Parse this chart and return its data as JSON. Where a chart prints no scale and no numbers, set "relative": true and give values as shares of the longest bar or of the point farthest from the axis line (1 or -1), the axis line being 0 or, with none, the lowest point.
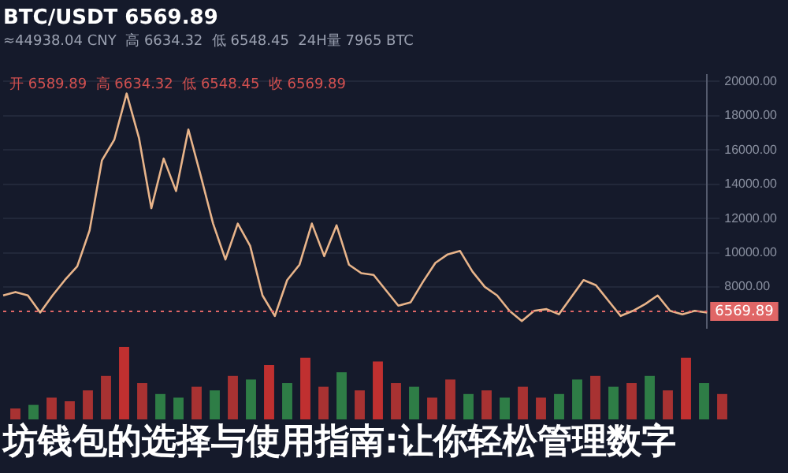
{
  "chart_data": [
    {
      "type": "line",
      "title": "BTC/USDT 6569.89",
      "subtitle": "≈44938.04 CNY  高 6634.32  低 6548.45  24H量 7965 BTC",
      "annotations": [
        "开 6589.89  高 6634.32  低 6548.45  收 6569.89"
      ],
      "categories": [
        null,
        null,
        null,
        null,
        null,
        null,
        null,
        null,
        null,
        null,
        null,
        null,
        null,
        null,
        null,
        null,
        null,
        null,
        null,
        null,
        null,
        null,
        null,
        null,
        null,
        null,
        null,
        null,
        null,
        null,
        null,
        null,
        null,
        null,
        null,
        null,
        null,
        null,
        null,
        null,
        null,
        null,
        null,
        null,
        null,
        null,
        null,
        null,
        null,
        null,
        null,
        null,
        null,
        null,
        null,
        null,
        null,
        null
      ],
      "series": [
        {
          "color": "#e8b48a",
          "values": [
            7500,
            7700,
            7500,
            6500,
            7500,
            8400,
            9200,
            11300,
            15400,
            16600,
            19300,
            16700,
            12600,
            15500,
            13600,
            17200,
            14500,
            11700,
            9600,
            11700,
            10400,
            7500,
            6300,
            8400,
            9300,
            11700,
            9800,
            11600,
            9300,
            8800,
            8700,
            7800,
            6900,
            7100,
            8300,
            9400,
            9900,
            10100,
            8900,
            8000,
            7500,
            6600,
            6000,
            6600,
            6700,
            6400,
            7400,
            8400,
            8100,
            7200,
            6300,
            6600,
            7000,
            7500,
            6600,
            6400,
            6600,
            6500
          ]
        }
      ],
      "ylim": [
        5600,
        20400
      ],
      "yticks": [
        {
          "value": 8000,
          "label": "8000.00"
        },
        {
          "value": 10000,
          "label": "10000.00"
        },
        {
          "value": 12000,
          "label": "12000.00"
        },
        {
          "value": 14000,
          "label": "14000.00"
        },
        {
          "value": 16000,
          "label": "16000.00"
        },
        {
          "value": 18000,
          "label": "18000.00"
        },
        {
          "value": 20000,
          "label": "20000.00"
        }
      ],
      "ref_lines": [
        {
          "axis": "y",
          "value": 6569.89,
          "label": "6569.89",
          "color": "#e06666",
          "line_style": "dotted"
        }
      ],
      "tick_labels": "y",
      "grid": "y",
      "legend": false,
      "marker": "none",
      "line_style": "solid"
    },
    {
      "type": "bar",
      "relative": true,
      "annotations": [
        "坊钱包的选择与使用指南:让你轻松管理数字"
      ],
      "categories": [
        null,
        null,
        null,
        null,
        null,
        null,
        null,
        null,
        null,
        null,
        null,
        null,
        null,
        null,
        null,
        null,
        null,
        null,
        null,
        null,
        null,
        null,
        null,
        null,
        null,
        null,
        null,
        null,
        null,
        null,
        null,
        null,
        null,
        null,
        null,
        null,
        null,
        null,
        null,
        null
      ],
      "values": [
        0.15,
        0.2,
        0.3,
        0.25,
        0.4,
        0.6,
        1,
        0.5,
        0.35,
        0.3,
        0.45,
        0.4,
        0.6,
        0.55,
        0.75,
        0.5,
        0.85,
        0.45,
        0.65,
        0.4,
        0.8,
        0.5,
        0.45,
        0.3,
        0.55,
        0.35,
        0.4,
        0.3,
        0.45,
        0.3,
        0.35,
        0.55,
        0.6,
        0.45,
        0.5,
        0.6,
        0.4,
        0.85,
        0.5,
        0.35
      ],
      "colors": [
        "#a83232",
        "#2e7d46",
        "#a83232",
        "#a83232",
        "#a83232",
        "#a83232",
        "#c03030",
        "#a83232",
        "#2e7d46",
        "#2e7d46",
        "#a83232",
        "#2e7d46",
        "#a83232",
        "#2e7d46",
        "#c03030",
        "#2e7d46",
        "#c03030",
        "#a83232",
        "#2e7d46",
        "#a83232",
        "#c03030",
        "#a83232",
        "#2e7d46",
        "#a83232",
        "#a83232",
        "#2e7d46",
        "#a83232",
        "#2e7d46",
        "#a83232",
        "#a83232",
        "#2e7d46",
        "#2e7d46",
        "#a83232",
        "#2e7d46",
        "#a83232",
        "#2e7d46",
        "#a83232",
        "#c03030",
        "#2e7d46",
        "#a83232"
      ],
      "tick_labels": false,
      "grid": false,
      "legend": false
    }
  ]
}
